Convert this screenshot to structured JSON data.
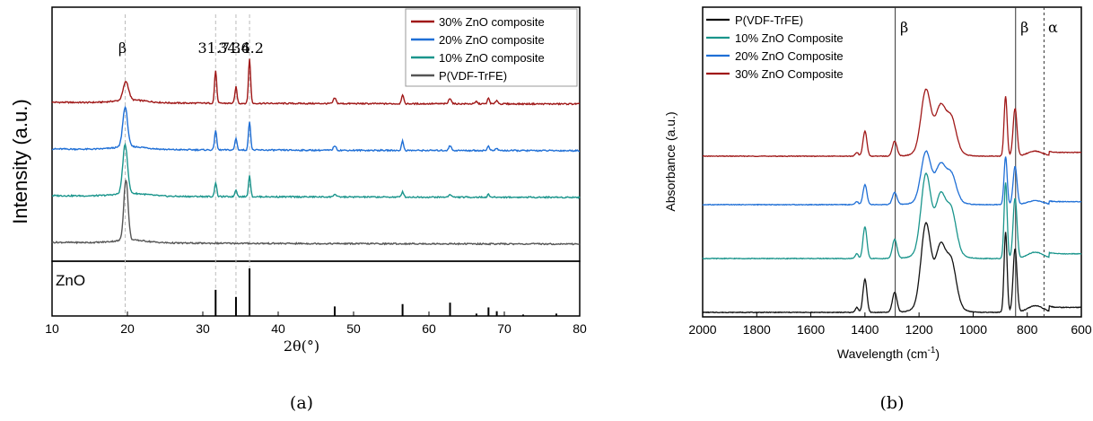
{
  "chart_data": [
    {
      "type": "line",
      "title": "",
      "xlabel": "2θ(°)",
      "ylabel": "Intensity (a.u.)",
      "xlim": [
        10,
        80
      ],
      "xticks": [
        10,
        20,
        30,
        40,
        50,
        60,
        70,
        80
      ],
      "caption": "(a)",
      "legend_position": "top-right",
      "annotations": [
        {
          "text": "β",
          "x": 19.7
        },
        {
          "text": "31.7",
          "x": 31.7
        },
        {
          "text": "34.4",
          "x": 34.4
        },
        {
          "text": "36.2",
          "x": 36.2
        }
      ],
      "series": [
        {
          "name": "30% ZnO composite",
          "color": "#a01818",
          "offset": 3.0,
          "peaks": [
            [
              19.8,
              0.5,
              0.4
            ],
            [
              31.7,
              0.2,
              0.7
            ],
            [
              34.4,
              0.2,
              0.35
            ],
            [
              36.2,
              0.2,
              0.95
            ],
            [
              47.5,
              0.25,
              0.12
            ],
            [
              56.5,
              0.2,
              0.2
            ],
            [
              62.8,
              0.25,
              0.12
            ],
            [
              66.3,
              0.2,
              0.05
            ],
            [
              67.9,
              0.2,
              0.12
            ],
            [
              69.0,
              0.2,
              0.08
            ]
          ]
        },
        {
          "name": "20% ZnO composite",
          "color": "#1f6fd6",
          "offset": 2.0,
          "peaks": [
            [
              19.7,
              0.45,
              0.85
            ],
            [
              31.7,
              0.2,
              0.42
            ],
            [
              34.4,
              0.2,
              0.25
            ],
            [
              36.2,
              0.2,
              0.62
            ],
            [
              47.5,
              0.25,
              0.1
            ],
            [
              56.5,
              0.2,
              0.2
            ],
            [
              62.8,
              0.25,
              0.1
            ],
            [
              67.9,
              0.2,
              0.1
            ],
            [
              69.0,
              0.2,
              0.05
            ]
          ]
        },
        {
          "name": "10% ZnO composite",
          "color": "#1a958c",
          "offset": 1.0,
          "peaks": [
            [
              19.7,
              0.45,
              1.05
            ],
            [
              31.7,
              0.2,
              0.3
            ],
            [
              34.4,
              0.2,
              0.15
            ],
            [
              36.2,
              0.2,
              0.45
            ],
            [
              47.5,
              0.25,
              0.06
            ],
            [
              56.5,
              0.2,
              0.12
            ],
            [
              62.8,
              0.25,
              0.06
            ],
            [
              67.9,
              0.2,
              0.06
            ]
          ]
        },
        {
          "name": "P(VDF-TrFE)",
          "color": "#555555",
          "offset": 0.0,
          "peaks": [
            [
              19.8,
              0.4,
              1.3
            ]
          ]
        }
      ],
      "reference": {
        "label": "ZnO",
        "sticks": [
          [
            31.7,
            0.55
          ],
          [
            34.4,
            0.4
          ],
          [
            36.2,
            1.0
          ],
          [
            47.5,
            0.2
          ],
          [
            56.5,
            0.25
          ],
          [
            62.8,
            0.28
          ],
          [
            66.3,
            0.05
          ],
          [
            67.9,
            0.18
          ],
          [
            69.0,
            0.1
          ],
          [
            72.5,
            0.03
          ],
          [
            76.9,
            0.05
          ]
        ]
      }
    },
    {
      "type": "line",
      "title": "",
      "xlabel": "Wavelength (cm",
      "xlabel_superscript": "-1",
      "xlabel_suffix": ")",
      "ylabel": "Absorbance (a.u.)",
      "xlim": [
        2000,
        600
      ],
      "xticks": [
        2000,
        1800,
        1600,
        1400,
        1200,
        1000,
        800,
        600
      ],
      "caption": "(b)",
      "legend_position": "top-left",
      "annotations": [
        {
          "text": "β",
          "x": 1288,
          "style": "solid"
        },
        {
          "text": "β",
          "x": 843,
          "style": "solid"
        },
        {
          "text": "α",
          "x": 738,
          "style": "dashed"
        }
      ],
      "series": [
        {
          "name": "P(VDF-TrFE)",
          "color": "#111111",
          "offset": 0.0,
          "scale": 1.0
        },
        {
          "name": "10% ZnO Composite",
          "color": "#1a958c",
          "offset": 1.0,
          "scale": 0.95
        },
        {
          "name": "20% ZnO Composite",
          "color": "#1f6fd6",
          "offset": 2.0,
          "scale": 0.6
        },
        {
          "name": "30% ZnO Composite",
          "color": "#a01818",
          "offset": 2.9,
          "scale": 0.75
        }
      ],
      "ir_bands": [
        [
          1430,
          8,
          0.15
        ],
        [
          1400,
          10,
          1.0
        ],
        [
          1290,
          12,
          0.6
        ],
        [
          1175,
          25,
          2.3
        ],
        [
          1120,
          25,
          1.45
        ],
        [
          1080,
          25,
          1.2
        ],
        [
          880,
          8,
          2.4
        ],
        [
          845,
          10,
          1.9
        ],
        [
          770,
          40,
          0.2
        ]
      ]
    }
  ]
}
